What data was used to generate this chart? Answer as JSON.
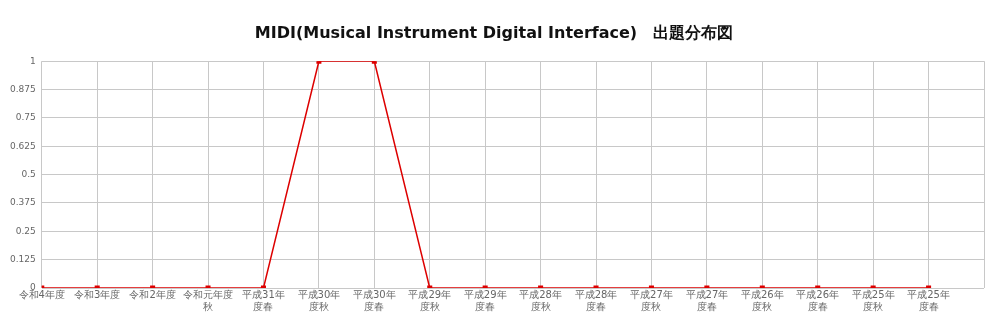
{
  "chart_data": {
    "type": "line",
    "title": "MIDI(Musical Instrument Digital Interface)　出題分布図",
    "categories": [
      "令和4年度",
      "令和3年度",
      "令和2年度",
      "令和元年度秋",
      "平成31年度春",
      "平成30年度秋",
      "平成30年度春",
      "平成29年度秋",
      "平成29年度春",
      "平成28年度秋",
      "平成28年度春",
      "平成27年度秋",
      "平成27年度春",
      "平成26年度秋",
      "平成26年度春",
      "平成25年度秋",
      "平成25年度春"
    ],
    "series": [
      {
        "color": "#dd0000",
        "values": [
          0,
          0,
          0,
          0,
          0,
          1,
          1,
          0,
          0,
          0,
          0,
          0,
          0,
          0,
          0,
          0,
          0
        ]
      }
    ],
    "ylim": [
      0,
      1
    ],
    "yticks": [
      0,
      0.125,
      0.25,
      0.375,
      0.5,
      0.625,
      0.75,
      0.875,
      1
    ],
    "grid": true,
    "legend": false,
    "marker": "square",
    "line_style": "solid"
  }
}
